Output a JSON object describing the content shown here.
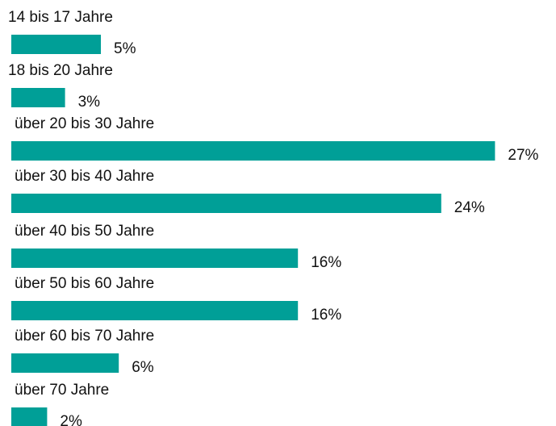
{
  "chart_data": {
    "type": "bar",
    "orientation": "horizontal",
    "categories": [
      "14 bis 17 Jahre",
      "18 bis 20 Jahre",
      "über 20 bis 30 Jahre",
      "über 30 bis 40 Jahre",
      "über 40 bis 50 Jahre",
      "über 50 bis 60 Jahre",
      "über 60 bis 70 Jahre",
      "über 70 Jahre"
    ],
    "values": [
      5,
      3,
      27,
      24,
      16,
      16,
      6,
      2
    ],
    "value_labels": [
      "5%",
      "3%",
      "27%",
      "24%",
      "16%",
      "16%",
      "6%",
      "2%"
    ],
    "color": "#009f97"
  }
}
